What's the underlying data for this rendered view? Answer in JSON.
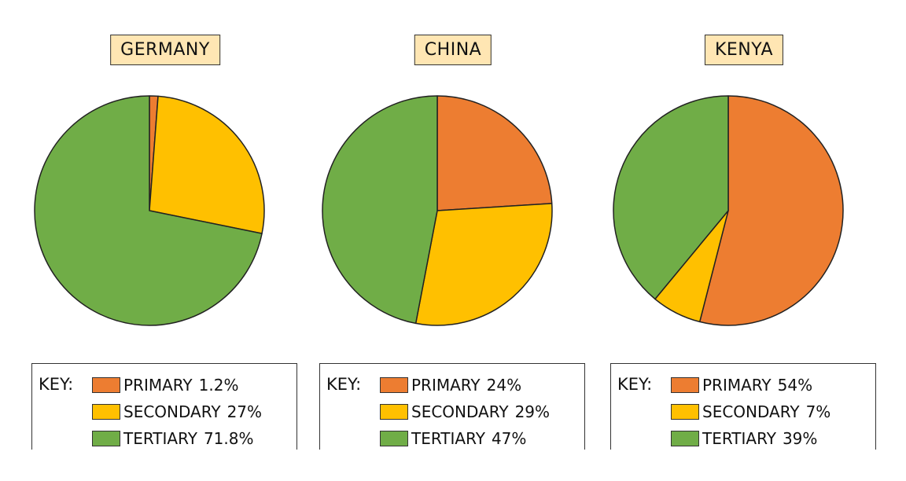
{
  "chart_data": [
    {
      "type": "pie",
      "title": "GERMANY",
      "key_label": "KEY:",
      "categories": [
        "PRIMARY",
        "SECONDARY",
        "TERTIARY"
      ],
      "values": [
        1.2,
        27,
        71.8
      ],
      "value_labels": [
        "1.2%",
        "27%",
        "71.8%"
      ],
      "colors": [
        "#ed7d31",
        "#ffc000",
        "#70ad47"
      ]
    },
    {
      "type": "pie",
      "title": "CHINA",
      "key_label": "KEY:",
      "categories": [
        "PRIMARY",
        "SECONDARY",
        "TERTIARY"
      ],
      "values": [
        24,
        29,
        47
      ],
      "value_labels": [
        "24%",
        "29%",
        "47%"
      ],
      "colors": [
        "#ed7d31",
        "#ffc000",
        "#70ad47"
      ]
    },
    {
      "type": "pie",
      "title": "KENYA",
      "key_label": "KEY:",
      "categories": [
        "PRIMARY",
        "SECONDARY",
        "TERTIARY"
      ],
      "values": [
        54,
        7,
        39
      ],
      "value_labels": [
        "54%",
        "7%",
        "39%"
      ],
      "colors": [
        "#ed7d31",
        "#ffc000",
        "#70ad47"
      ]
    }
  ]
}
